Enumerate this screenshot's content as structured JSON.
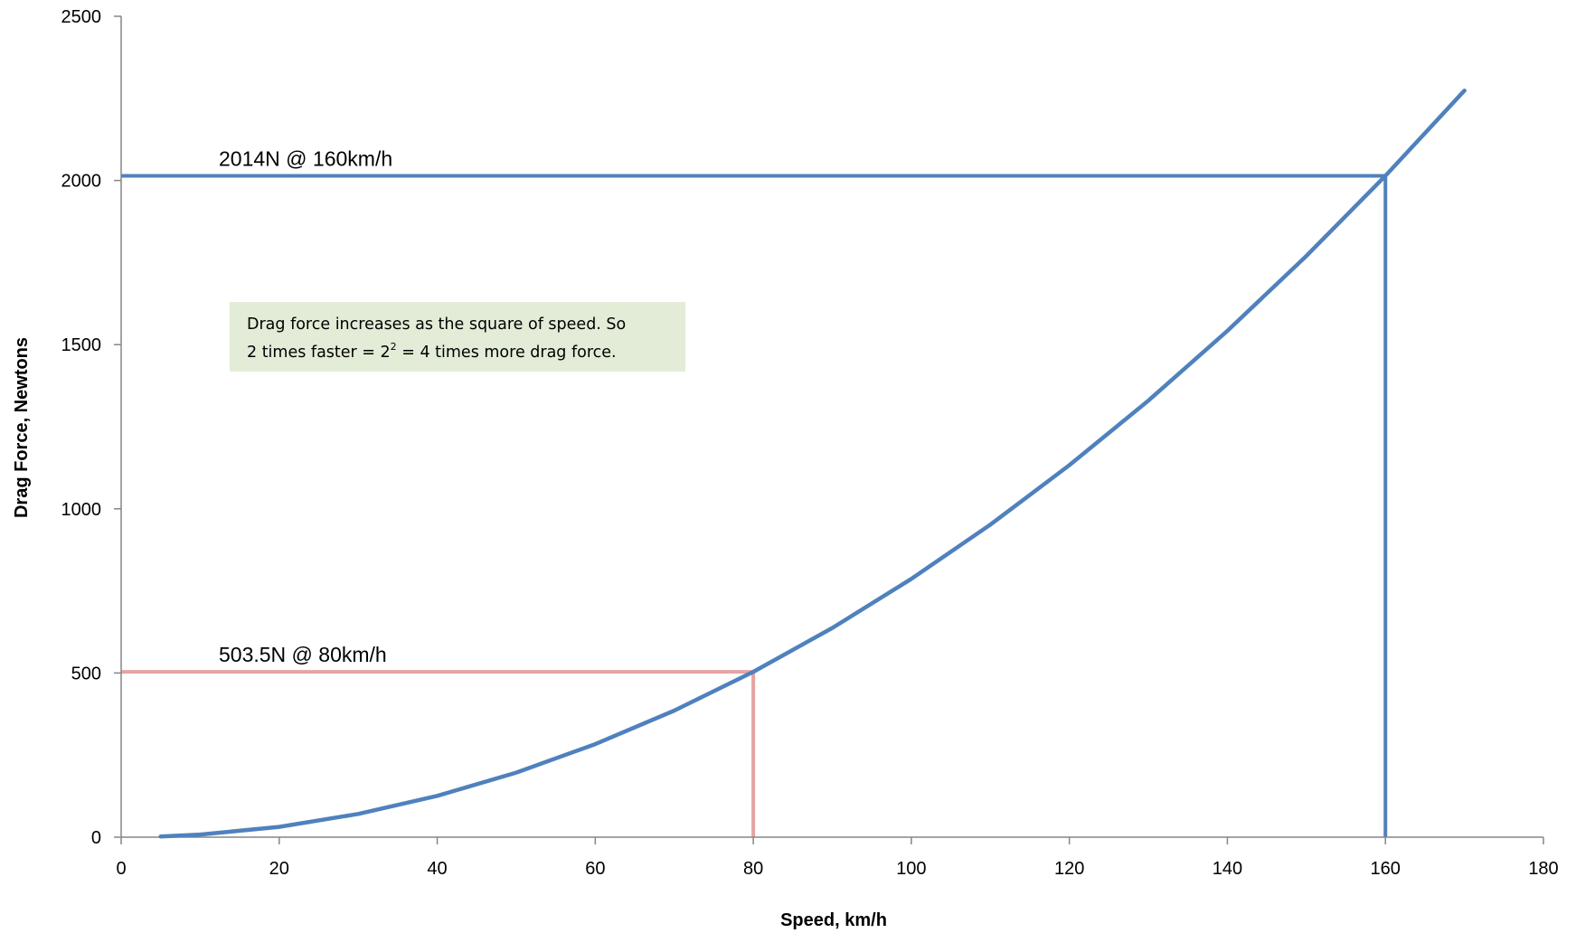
{
  "chart_data": {
    "type": "line",
    "title": "",
    "xlabel": "Speed, km/h",
    "ylabel": "Drag Force, Newtons",
    "xlim": [
      0,
      180
    ],
    "ylim": [
      0,
      2500
    ],
    "x_ticks": [
      "0",
      "20",
      "40",
      "60",
      "80",
      "100",
      "120",
      "140",
      "160",
      "180"
    ],
    "y_ticks": [
      "0",
      "500",
      "1000",
      "1500",
      "2000",
      "2500"
    ],
    "grid": false,
    "legend": "none",
    "series": [
      {
        "color": "#4f81bd",
        "x": [
          5,
          10,
          20,
          30,
          40,
          50,
          60,
          70,
          80,
          90,
          100,
          110,
          120,
          130,
          140,
          150,
          160,
          170
        ],
        "y": [
          1.97,
          7.87,
          31.5,
          70.8,
          125.9,
          196.7,
          283.2,
          385.5,
          503.5,
          637.2,
          786.7,
          951.9,
          1132.9,
          1329.6,
          1541.9,
          1770.1,
          2014.0,
          2273.6
        ]
      }
    ],
    "reference_lines": [
      {
        "label": "2014N @ 160km/h",
        "x": 160,
        "y": 2014,
        "color": "#4f81bd"
      },
      {
        "label": "503.5N @ 80km/h",
        "x": 80,
        "y": 503.5,
        "color": "#e6a3a3"
      }
    ],
    "annotation": {
      "line1": "Drag force increases as the square of speed. So",
      "line2_before": "2 times faster = 2",
      "line2_sup": "2",
      "line2_after": " = 4 times more drag force.",
      "background": "#e3ecd7"
    }
  }
}
